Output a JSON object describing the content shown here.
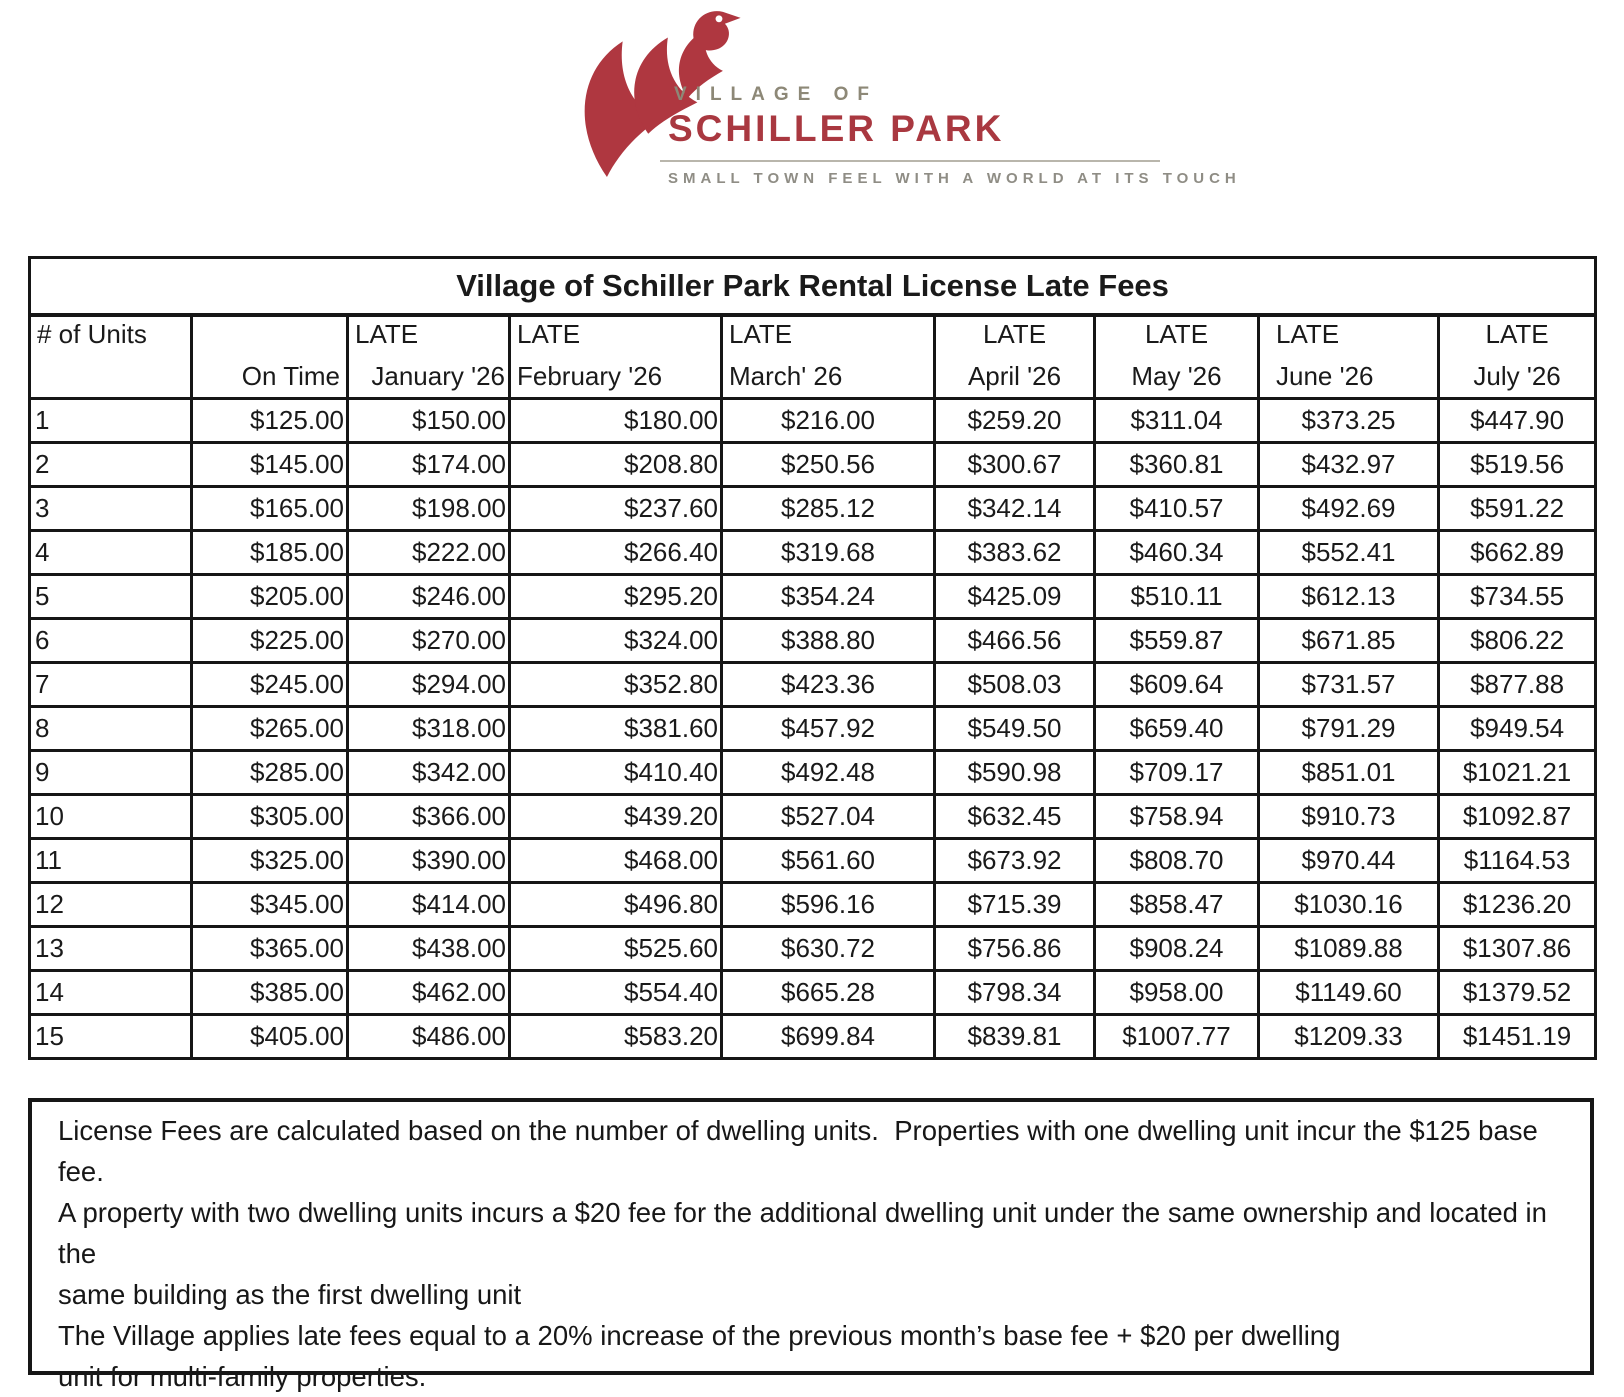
{
  "logo": {
    "village_of": "VILLAGE OF",
    "name": "SCHILLER PARK",
    "tagline": "SMALL TOWN FEEL WITH A WORLD AT ITS TOUCH",
    "colors": {
      "red": "#a93840",
      "gray": "#8d8877"
    }
  },
  "table": {
    "title": "Village of Schiller Park Rental License Late Fees",
    "columns": [
      {
        "line1": "# of Units",
        "line2": ""
      },
      {
        "line1": "",
        "line2": "On Time"
      },
      {
        "line1": "LATE",
        "line2": "January '26"
      },
      {
        "line1": "LATE",
        "line2": "February '26"
      },
      {
        "line1": "LATE",
        "line2": "March' 26"
      },
      {
        "line1": "LATE",
        "line2": "April '26"
      },
      {
        "line1": "LATE",
        "line2": "May '26"
      },
      {
        "line1": "LATE",
        "line2": "June '26"
      },
      {
        "line1": "LATE",
        "line2": "July '26"
      }
    ],
    "rows": [
      {
        "units": "1",
        "values": [
          "$125.00",
          "$150.00",
          "$180.00",
          "$216.00",
          "$259.20",
          "$311.04",
          "$373.25",
          "$447.90"
        ]
      },
      {
        "units": "2",
        "values": [
          "$145.00",
          "$174.00",
          "$208.80",
          "$250.56",
          "$300.67",
          "$360.81",
          "$432.97",
          "$519.56"
        ]
      },
      {
        "units": "3",
        "values": [
          "$165.00",
          "$198.00",
          "$237.60",
          "$285.12",
          "$342.14",
          "$410.57",
          "$492.69",
          "$591.22"
        ]
      },
      {
        "units": "4",
        "values": [
          "$185.00",
          "$222.00",
          "$266.40",
          "$319.68",
          "$383.62",
          "$460.34",
          "$552.41",
          "$662.89"
        ]
      },
      {
        "units": "5",
        "values": [
          "$205.00",
          "$246.00",
          "$295.20",
          "$354.24",
          "$425.09",
          "$510.11",
          "$612.13",
          "$734.55"
        ]
      },
      {
        "units": "6",
        "values": [
          "$225.00",
          "$270.00",
          "$324.00",
          "$388.80",
          "$466.56",
          "$559.87",
          "$671.85",
          "$806.22"
        ]
      },
      {
        "units": "7",
        "values": [
          "$245.00",
          "$294.00",
          "$352.80",
          "$423.36",
          "$508.03",
          "$609.64",
          "$731.57",
          "$877.88"
        ]
      },
      {
        "units": "8",
        "values": [
          "$265.00",
          "$318.00",
          "$381.60",
          "$457.92",
          "$549.50",
          "$659.40",
          "$791.29",
          "$949.54"
        ]
      },
      {
        "units": "9",
        "values": [
          "$285.00",
          "$342.00",
          "$410.40",
          "$492.48",
          "$590.98",
          "$709.17",
          "$851.01",
          "$1021.21"
        ]
      },
      {
        "units": "10",
        "values": [
          "$305.00",
          "$366.00",
          "$439.20",
          "$527.04",
          "$632.45",
          "$758.94",
          "$910.73",
          "$1092.87"
        ]
      },
      {
        "units": "11",
        "values": [
          "$325.00",
          "$390.00",
          "$468.00",
          "$561.60",
          "$673.92",
          "$808.70",
          "$970.44",
          "$1164.53"
        ]
      },
      {
        "units": "12",
        "values": [
          "$345.00",
          "$414.00",
          "$496.80",
          "$596.16",
          "$715.39",
          "$858.47",
          "$1030.16",
          "$1236.20"
        ]
      },
      {
        "units": "13",
        "values": [
          "$365.00",
          "$438.00",
          "$525.60",
          "$630.72",
          "$756.86",
          "$908.24",
          "$1089.88",
          "$1307.86"
        ]
      },
      {
        "units": "14",
        "values": [
          "$385.00",
          "$462.00",
          "$554.40",
          "$665.28",
          "$798.34",
          "$958.00",
          "$1149.60",
          "$1379.52"
        ]
      },
      {
        "units": "15",
        "values": [
          "$405.00",
          "$486.00",
          "$583.20",
          "$699.84",
          "$839.81",
          "$1007.77",
          "$1209.33",
          "$1451.19"
        ]
      }
    ]
  },
  "notes": {
    "lines": [
      "License Fees are calculated based on the number of dwelling units.  Properties with one dwelling unit incur the $125 base fee.",
      "A property with two dwelling units incurs a $20 fee for the additional dwelling unit under the same ownership and located in the",
      "same building as the first dwelling unit",
      "The Village applies late fees equal to a 20% increase of the previous month’s base fee + $20 per dwelling",
      "unit for multi-family properties."
    ]
  }
}
